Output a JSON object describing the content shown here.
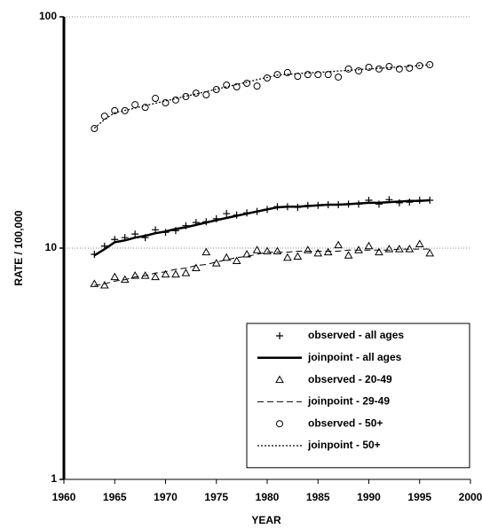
{
  "chart_data": {
    "type": "line",
    "x_label": "YEAR",
    "y_label": "RATE / 100,000",
    "x": [
      1963,
      1964,
      1965,
      1966,
      1967,
      1968,
      1969,
      1970,
      1971,
      1972,
      1973,
      1974,
      1975,
      1976,
      1977,
      1978,
      1979,
      1980,
      1981,
      1982,
      1983,
      1984,
      1985,
      1986,
      1987,
      1988,
      1989,
      1990,
      1991,
      1992,
      1993,
      1994,
      1995,
      1996
    ],
    "series": [
      {
        "name": "observed - all ages",
        "color": "#000000",
        "marker": "plus",
        "line": "none",
        "values": [
          9.4,
          10.2,
          10.9,
          11.1,
          11.5,
          11.1,
          12.0,
          11.7,
          11.9,
          12.5,
          12.9,
          13.0,
          13.4,
          14.1,
          13.9,
          14.2,
          14.4,
          14.7,
          15.1,
          15.1,
          15.0,
          15.3,
          15.3,
          15.4,
          15.4,
          15.5,
          15.5,
          16.1,
          15.5,
          16.2,
          15.7,
          15.8,
          16.1,
          16.1
        ]
      },
      {
        "name": "joinpoint - all ages",
        "color": "#000000",
        "marker": "none",
        "line": "solid",
        "values": [
          9.3,
          9.9,
          10.6,
          10.8,
          11.1,
          11.3,
          11.6,
          11.8,
          12.1,
          12.3,
          12.6,
          12.9,
          13.2,
          13.5,
          13.8,
          14.1,
          14.4,
          14.7,
          15.0,
          15.1,
          15.1,
          15.2,
          15.3,
          15.4,
          15.4,
          15.5,
          15.6,
          15.7,
          15.7,
          15.8,
          15.9,
          16.0,
          16.0,
          16.1
        ]
      },
      {
        "name": "observed - 20-49",
        "color": "#000000",
        "marker": "triangle",
        "line": "none",
        "values": [
          7.0,
          6.9,
          7.5,
          7.3,
          7.6,
          7.6,
          7.5,
          7.7,
          7.7,
          7.8,
          8.2,
          9.6,
          8.6,
          9.1,
          8.8,
          9.4,
          9.8,
          9.7,
          9.7,
          9.1,
          9.2,
          9.8,
          9.5,
          9.6,
          10.3,
          9.3,
          9.8,
          10.2,
          9.6,
          9.9,
          9.9,
          9.9,
          10.4,
          9.5
        ]
      },
      {
        "name": "joinpoint - 29-49",
        "color": "#000000",
        "marker": "none",
        "line": "dashed",
        "values": [
          6.9,
          7.0,
          7.2,
          7.3,
          7.5,
          7.6,
          7.8,
          7.9,
          8.1,
          8.2,
          8.4,
          8.5,
          8.7,
          8.9,
          9.1,
          9.2,
          9.4,
          9.6,
          9.6,
          9.6,
          9.7,
          9.7,
          9.7,
          9.7,
          9.7,
          9.8,
          9.8,
          9.8,
          9.8,
          9.8,
          9.9,
          9.9,
          9.9,
          9.9
        ]
      },
      {
        "name": "observed - 50+",
        "color": "#000000",
        "marker": "circle",
        "line": "none",
        "values": [
          32.9,
          37.2,
          39.3,
          39.3,
          41.7,
          40.6,
          44.4,
          42.5,
          43.7,
          45.2,
          46.8,
          46.0,
          48.5,
          50.7,
          49.8,
          51.6,
          50.2,
          54.4,
          56.3,
          57.4,
          55.3,
          56.3,
          56.3,
          56.3,
          54.9,
          59.5,
          58.4,
          60.5,
          59.5,
          61.0,
          59.5,
          60.0,
          61.5,
          62.1
        ]
      },
      {
        "name": "joinpoint  - 50+",
        "color": "#000000",
        "marker": "none",
        "line": "dotted",
        "values": [
          33.0,
          36.0,
          38.5,
          39.4,
          40.3,
          41.3,
          42.3,
          43.3,
          44.3,
          45.4,
          46.4,
          47.5,
          48.7,
          49.8,
          51.0,
          52.2,
          53.5,
          54.7,
          56.0,
          56.4,
          56.8,
          57.2,
          57.5,
          57.9,
          58.3,
          58.7,
          59.1,
          59.5,
          59.9,
          60.3,
          60.7,
          61.1,
          61.6,
          62.0
        ]
      }
    ],
    "xlim": [
      1960,
      2000
    ],
    "xticks": [
      1960,
      1965,
      1970,
      1975,
      1980,
      1985,
      1990,
      1995,
      2000
    ],
    "ylim": [
      1,
      100
    ],
    "yticks": [
      1,
      10,
      100
    ],
    "log_y": true,
    "grid": true,
    "legend": "lower right"
  }
}
